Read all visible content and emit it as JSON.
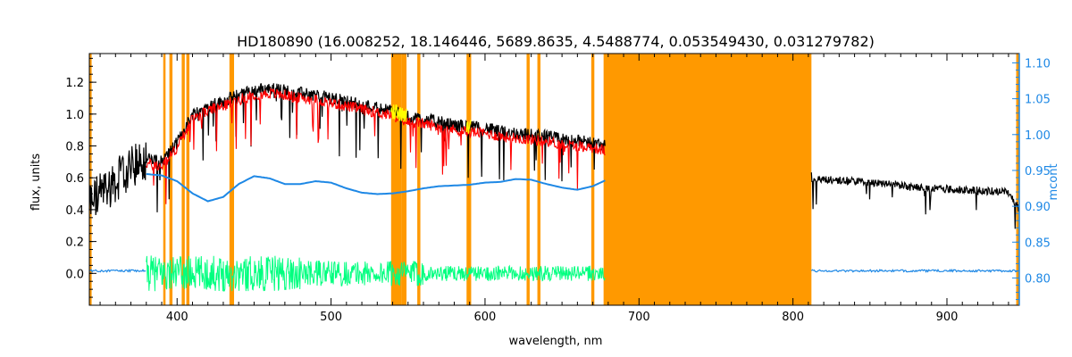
{
  "chart_data": {
    "type": "line",
    "title": "HD180890    (16.008252, 18.146446, 5689.8635, 4.5488774, 0.053549430, 0.031279782)",
    "xlabel": "wavelength, nm",
    "ylabel": "flux, units",
    "y2label": "mcont",
    "xlim": [
      343,
      947
    ],
    "ylim": [
      -0.2,
      1.38
    ],
    "y2lim": [
      0.762,
      1.113
    ],
    "x_ticks": [
      400,
      500,
      600,
      700,
      800,
      900
    ],
    "y_ticks": [
      0.0,
      0.2,
      0.4,
      0.6,
      0.8,
      1.0,
      1.2
    ],
    "y_tick_labels": [
      "0.0",
      "0.2",
      "0.4",
      "0.6",
      "0.8",
      "1.0",
      "1.2"
    ],
    "y2_ticks": [
      0.8,
      0.85,
      0.9,
      0.95,
      1.0,
      1.05,
      1.1
    ],
    "y2_tick_labels": [
      "0.80",
      "0.85",
      "0.90",
      "0.95",
      "1.00",
      "1.05",
      "1.10"
    ],
    "grid": false,
    "colors": {
      "observed": "#000000",
      "model": "#ff0000",
      "residuals": "#00ff7f",
      "continuum": "#1e88e5",
      "mask": "#ff9900",
      "highlight": "#ffff00"
    },
    "masked_regions": [
      [
        343,
        344.5
      ],
      [
        391,
        392.5
      ],
      [
        395,
        397
      ],
      [
        403,
        405
      ],
      [
        406,
        408
      ],
      [
        434,
        437
      ],
      [
        539,
        546
      ],
      [
        546,
        549
      ],
      [
        556,
        558
      ],
      [
        588,
        591
      ],
      [
        627,
        629
      ],
      [
        634,
        636
      ],
      [
        669,
        671
      ],
      [
        677,
        812
      ],
      [
        945,
        947
      ]
    ],
    "continuum_curve": {
      "x": [
        380,
        390,
        400,
        410,
        420,
        430,
        440,
        450,
        460,
        470,
        480,
        490,
        500,
        510,
        520,
        530,
        540,
        550,
        560,
        570,
        580,
        590,
        600,
        610,
        620,
        630,
        640,
        650,
        660,
        670,
        678
      ],
      "y": [
        0.945,
        0.943,
        0.935,
        0.918,
        0.907,
        0.913,
        0.931,
        0.942,
        0.939,
        0.931,
        0.931,
        0.935,
        0.933,
        0.925,
        0.919,
        0.917,
        0.918,
        0.921,
        0.925,
        0.928,
        0.929,
        0.93,
        0.933,
        0.934,
        0.938,
        0.937,
        0.931,
        0.926,
        0.923,
        0.928,
        0.936
      ]
    },
    "continuum_curve_tail": {
      "x": [
        343,
        380,
        812,
        947
      ],
      "y": 0.81
    },
    "observed_envelope": {
      "x": [
        343,
        350,
        360,
        370,
        380,
        390,
        400,
        410,
        420,
        430,
        440,
        450,
        460,
        470,
        480,
        490,
        500,
        510,
        520,
        530,
        540,
        550,
        560,
        570,
        580,
        590,
        600,
        610,
        620,
        630,
        640,
        650,
        660,
        670,
        678,
        812,
        820,
        840,
        860,
        880,
        900,
        920,
        940,
        947
      ],
      "y": [
        0.45,
        0.5,
        0.58,
        0.66,
        0.72,
        0.7,
        0.82,
        1.0,
        1.05,
        1.08,
        1.12,
        1.15,
        1.16,
        1.15,
        1.13,
        1.12,
        1.1,
        1.08,
        1.06,
        1.04,
        1.02,
        0.98,
        0.97,
        0.95,
        0.93,
        0.92,
        0.91,
        0.89,
        0.88,
        0.87,
        0.86,
        0.84,
        0.83,
        0.82,
        0.8,
        0.6,
        0.59,
        0.58,
        0.56,
        0.54,
        0.53,
        0.52,
        0.51,
        0.4
      ]
    },
    "residual_level": 0.0
  }
}
